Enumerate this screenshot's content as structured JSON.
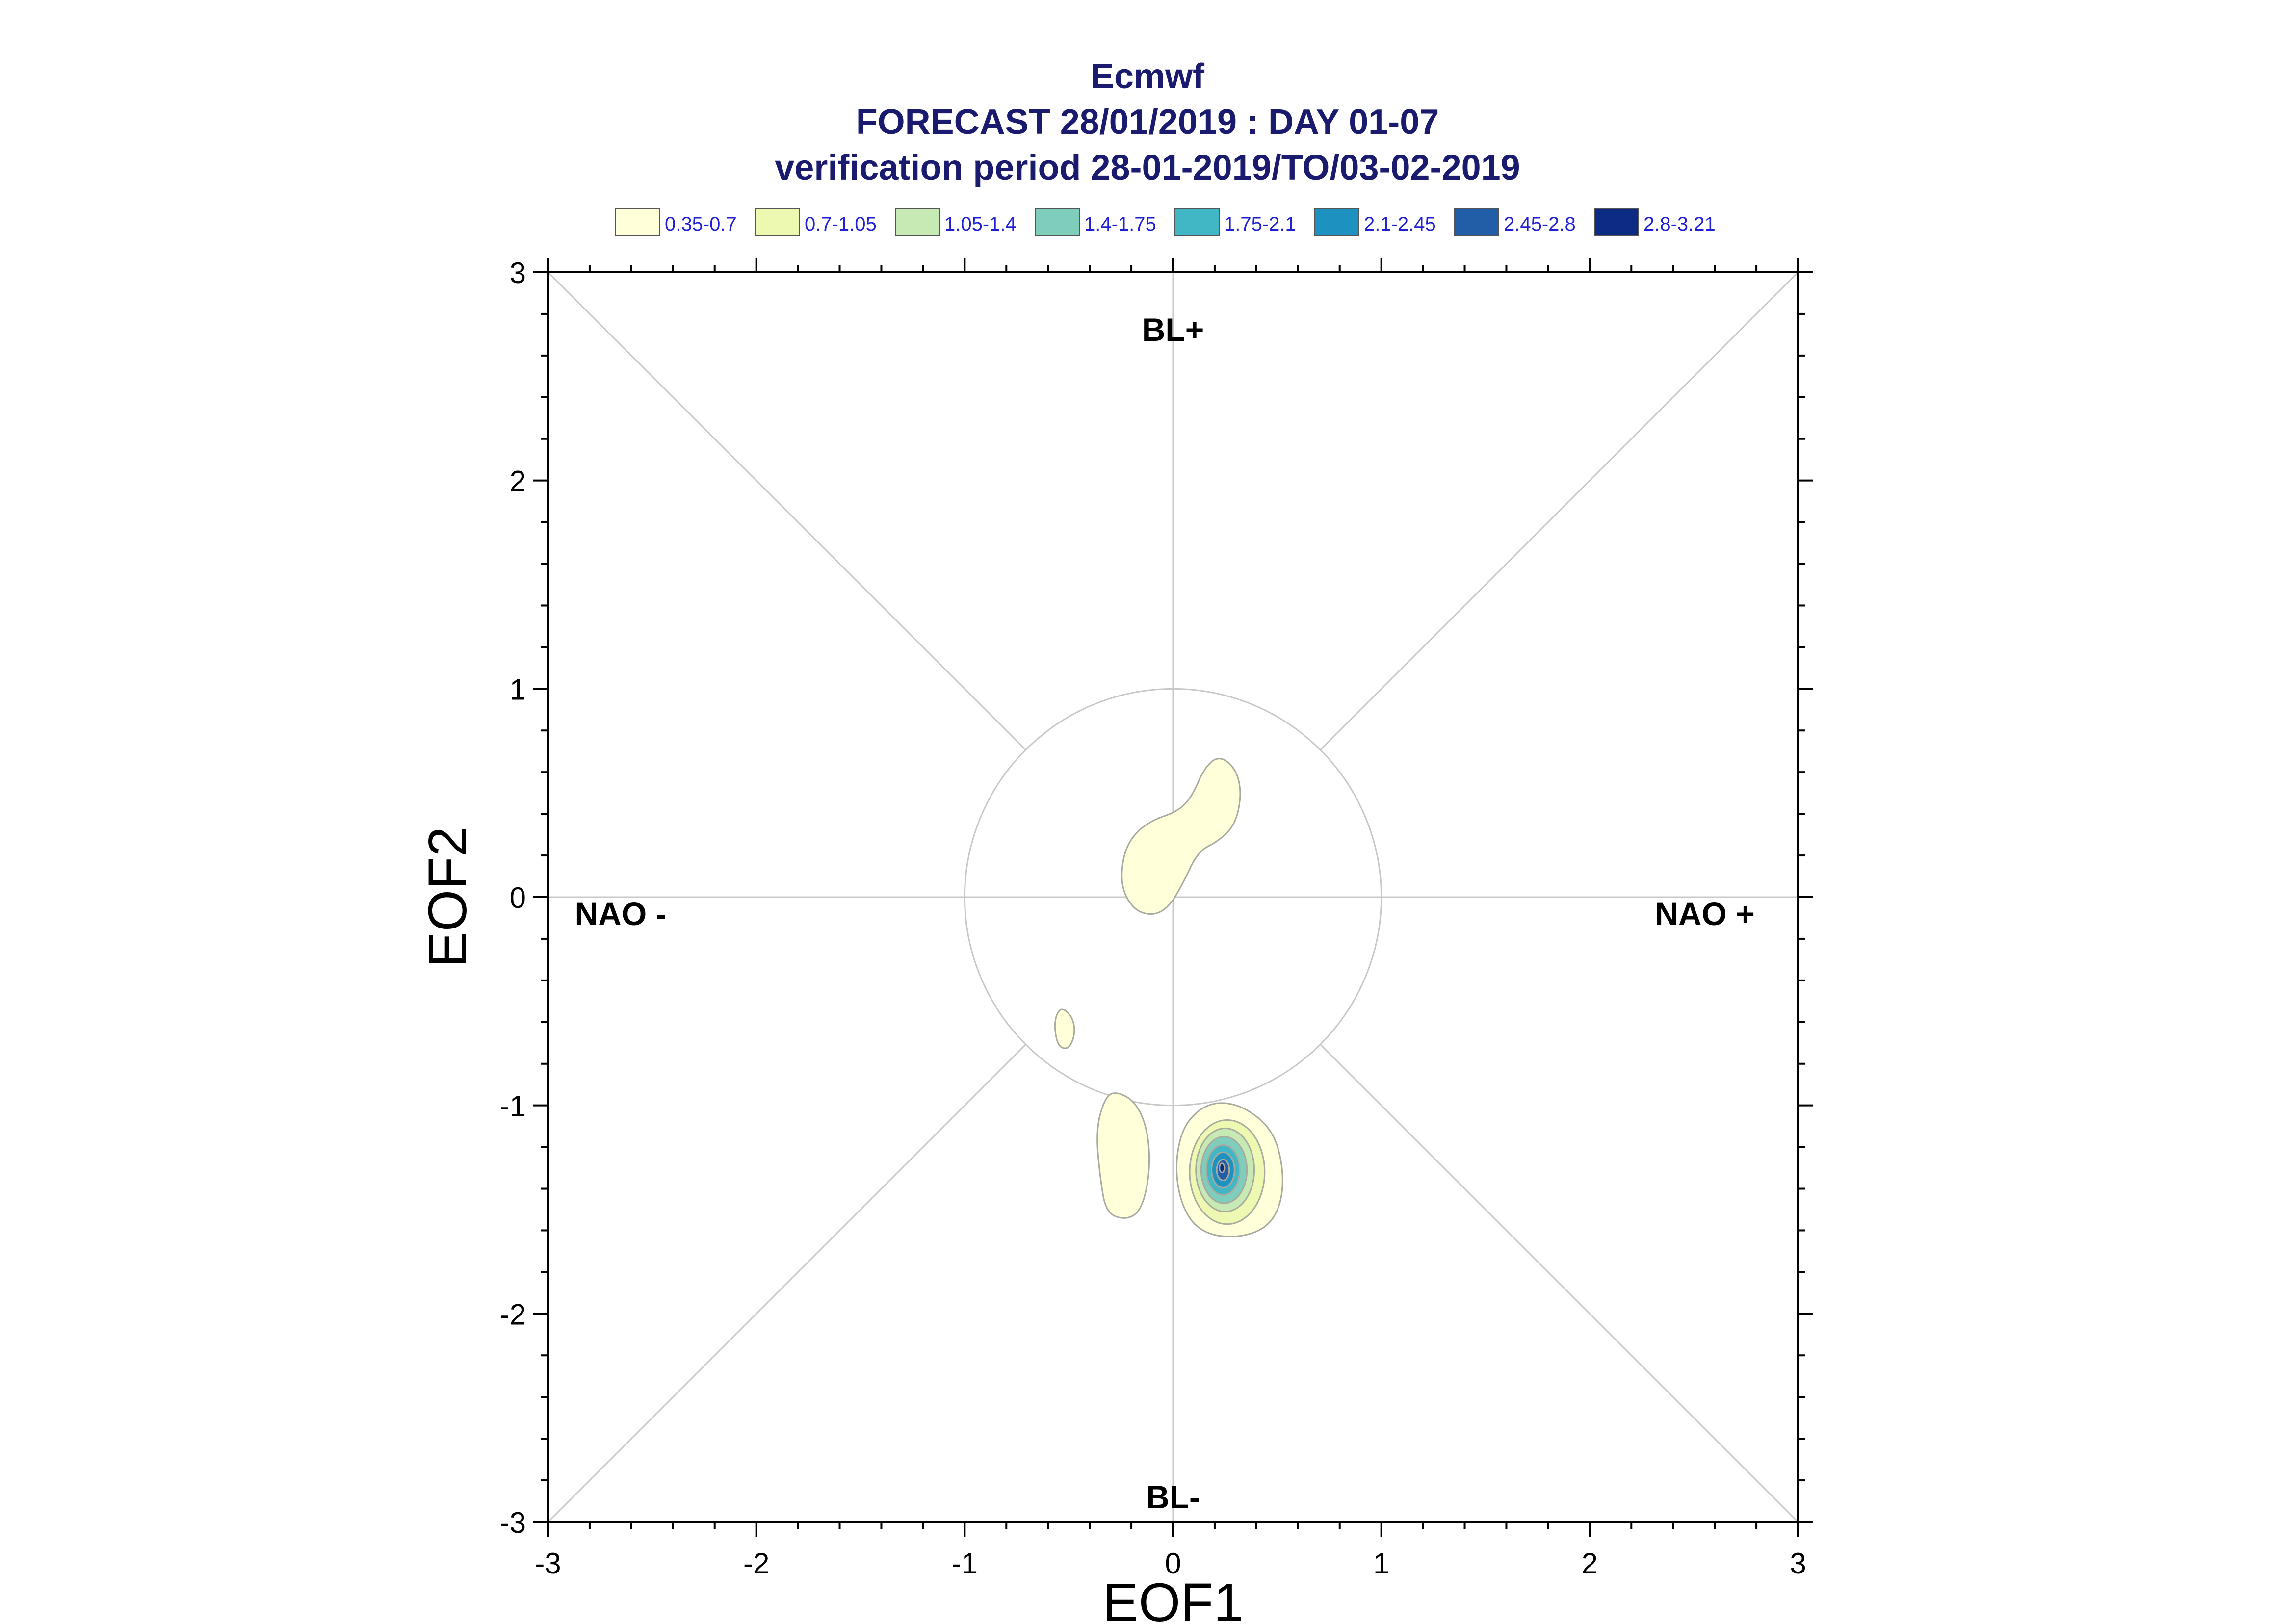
{
  "title_lines": [
    "Ecmwf",
    "FORECAST 28/01/2019 : DAY 01-07",
    "verification period 28-01-2019/TO/03-02-2019"
  ],
  "legend": [
    {
      "label": "0.35-0.7",
      "color": "#FFFFD9"
    },
    {
      "label": "0.7-1.05",
      "color": "#EDF8B1"
    },
    {
      "label": "1.05-1.4",
      "color": "#C7E9B4"
    },
    {
      "label": "1.4-1.75",
      "color": "#7FCDBB"
    },
    {
      "label": "1.75-2.1",
      "color": "#41B6C4"
    },
    {
      "label": "2.1-2.45",
      "color": "#1D91C0"
    },
    {
      "label": "2.45-2.8",
      "color": "#225EA8"
    },
    {
      "label": "2.8-3.21",
      "color": "#0C2C84"
    }
  ],
  "regimes": {
    "top": "BL+",
    "bottom": "BL-",
    "left": "NAO -",
    "right": "NAO +"
  },
  "chart_data": {
    "type": "contour",
    "xlabel": "EOF1",
    "ylabel": "EOF2",
    "xlim": [
      -3,
      3
    ],
    "ylim": [
      -3,
      3
    ],
    "xticks": [
      -3,
      -2,
      -1,
      0,
      1,
      2,
      3
    ],
    "yticks": [
      -3,
      -2,
      -1,
      0,
      1,
      2,
      3
    ],
    "unit_circle_radius": 1,
    "density_levels": [
      0.35,
      0.7,
      1.05,
      1.4,
      1.75,
      2.1,
      2.45,
      2.8,
      3.21
    ],
    "density_max": {
      "x": 0.24,
      "y": -1.31,
      "level": "2.8-3.21"
    },
    "regions": [
      {
        "level": "0.35-0.7",
        "outline": [
          [
            0.22,
            0.68
          ],
          [
            0.3,
            0.62
          ],
          [
            0.33,
            0.5
          ],
          [
            0.3,
            0.35
          ],
          [
            0.22,
            0.27
          ],
          [
            0.12,
            0.22
          ],
          [
            0.05,
            0.07
          ],
          [
            -0.02,
            -0.05
          ],
          [
            -0.1,
            -0.09
          ],
          [
            -0.19,
            -0.06
          ],
          [
            -0.25,
            0.05
          ],
          [
            -0.24,
            0.2
          ],
          [
            -0.19,
            0.3
          ],
          [
            -0.1,
            0.37
          ],
          [
            0.02,
            0.41
          ],
          [
            0.09,
            0.48
          ],
          [
            0.15,
            0.62
          ]
        ]
      },
      {
        "level": "0.35-0.7",
        "outline": [
          [
            -0.53,
            -0.53
          ],
          [
            -0.48,
            -0.58
          ],
          [
            -0.47,
            -0.66
          ],
          [
            -0.5,
            -0.73
          ],
          [
            -0.55,
            -0.72
          ],
          [
            -0.57,
            -0.63
          ],
          [
            -0.56,
            -0.56
          ]
        ]
      },
      {
        "level": "0.35-0.7",
        "outline": [
          [
            -0.28,
            -0.93
          ],
          [
            -0.18,
            -0.98
          ],
          [
            -0.12,
            -1.12
          ],
          [
            -0.11,
            -1.32
          ],
          [
            -0.15,
            -1.5
          ],
          [
            -0.22,
            -1.55
          ],
          [
            -0.32,
            -1.52
          ],
          [
            -0.35,
            -1.35
          ],
          [
            -0.37,
            -1.12
          ],
          [
            -0.33,
            -0.97
          ]
        ]
      },
      {
        "level": "0.35-0.7",
        "outline": [
          [
            0.22,
            -0.98
          ],
          [
            0.35,
            -1.01
          ],
          [
            0.48,
            -1.12
          ],
          [
            0.53,
            -1.3
          ],
          [
            0.52,
            -1.48
          ],
          [
            0.44,
            -1.6
          ],
          [
            0.27,
            -1.64
          ],
          [
            0.12,
            -1.6
          ],
          [
            0.04,
            -1.48
          ],
          [
            0.01,
            -1.3
          ],
          [
            0.04,
            -1.12
          ],
          [
            0.12,
            -1.02
          ]
        ]
      },
      {
        "level": "0.7-1.05",
        "center": [
          0.26,
          -1.32
        ],
        "radii": [
          0.18,
          0.25
        ]
      },
      {
        "level": "1.05-1.4",
        "center": [
          0.25,
          -1.31
        ],
        "radii": [
          0.14,
          0.2
        ]
      },
      {
        "level": "1.4-1.75",
        "center": [
          0.245,
          -1.31
        ],
        "radii": [
          0.11,
          0.16
        ]
      },
      {
        "level": "1.75-2.1",
        "center": [
          0.24,
          -1.31
        ],
        "radii": [
          0.08,
          0.12
        ]
      },
      {
        "level": "2.1-2.45",
        "center": [
          0.24,
          -1.31
        ],
        "radii": [
          0.055,
          0.085
        ]
      },
      {
        "level": "2.45-2.8",
        "center": [
          0.24,
          -1.31
        ],
        "radii": [
          0.03,
          0.05
        ]
      },
      {
        "level": "2.8-3.21",
        "center": [
          0.235,
          -1.3
        ],
        "radii": [
          0.012,
          0.022
        ]
      }
    ]
  }
}
